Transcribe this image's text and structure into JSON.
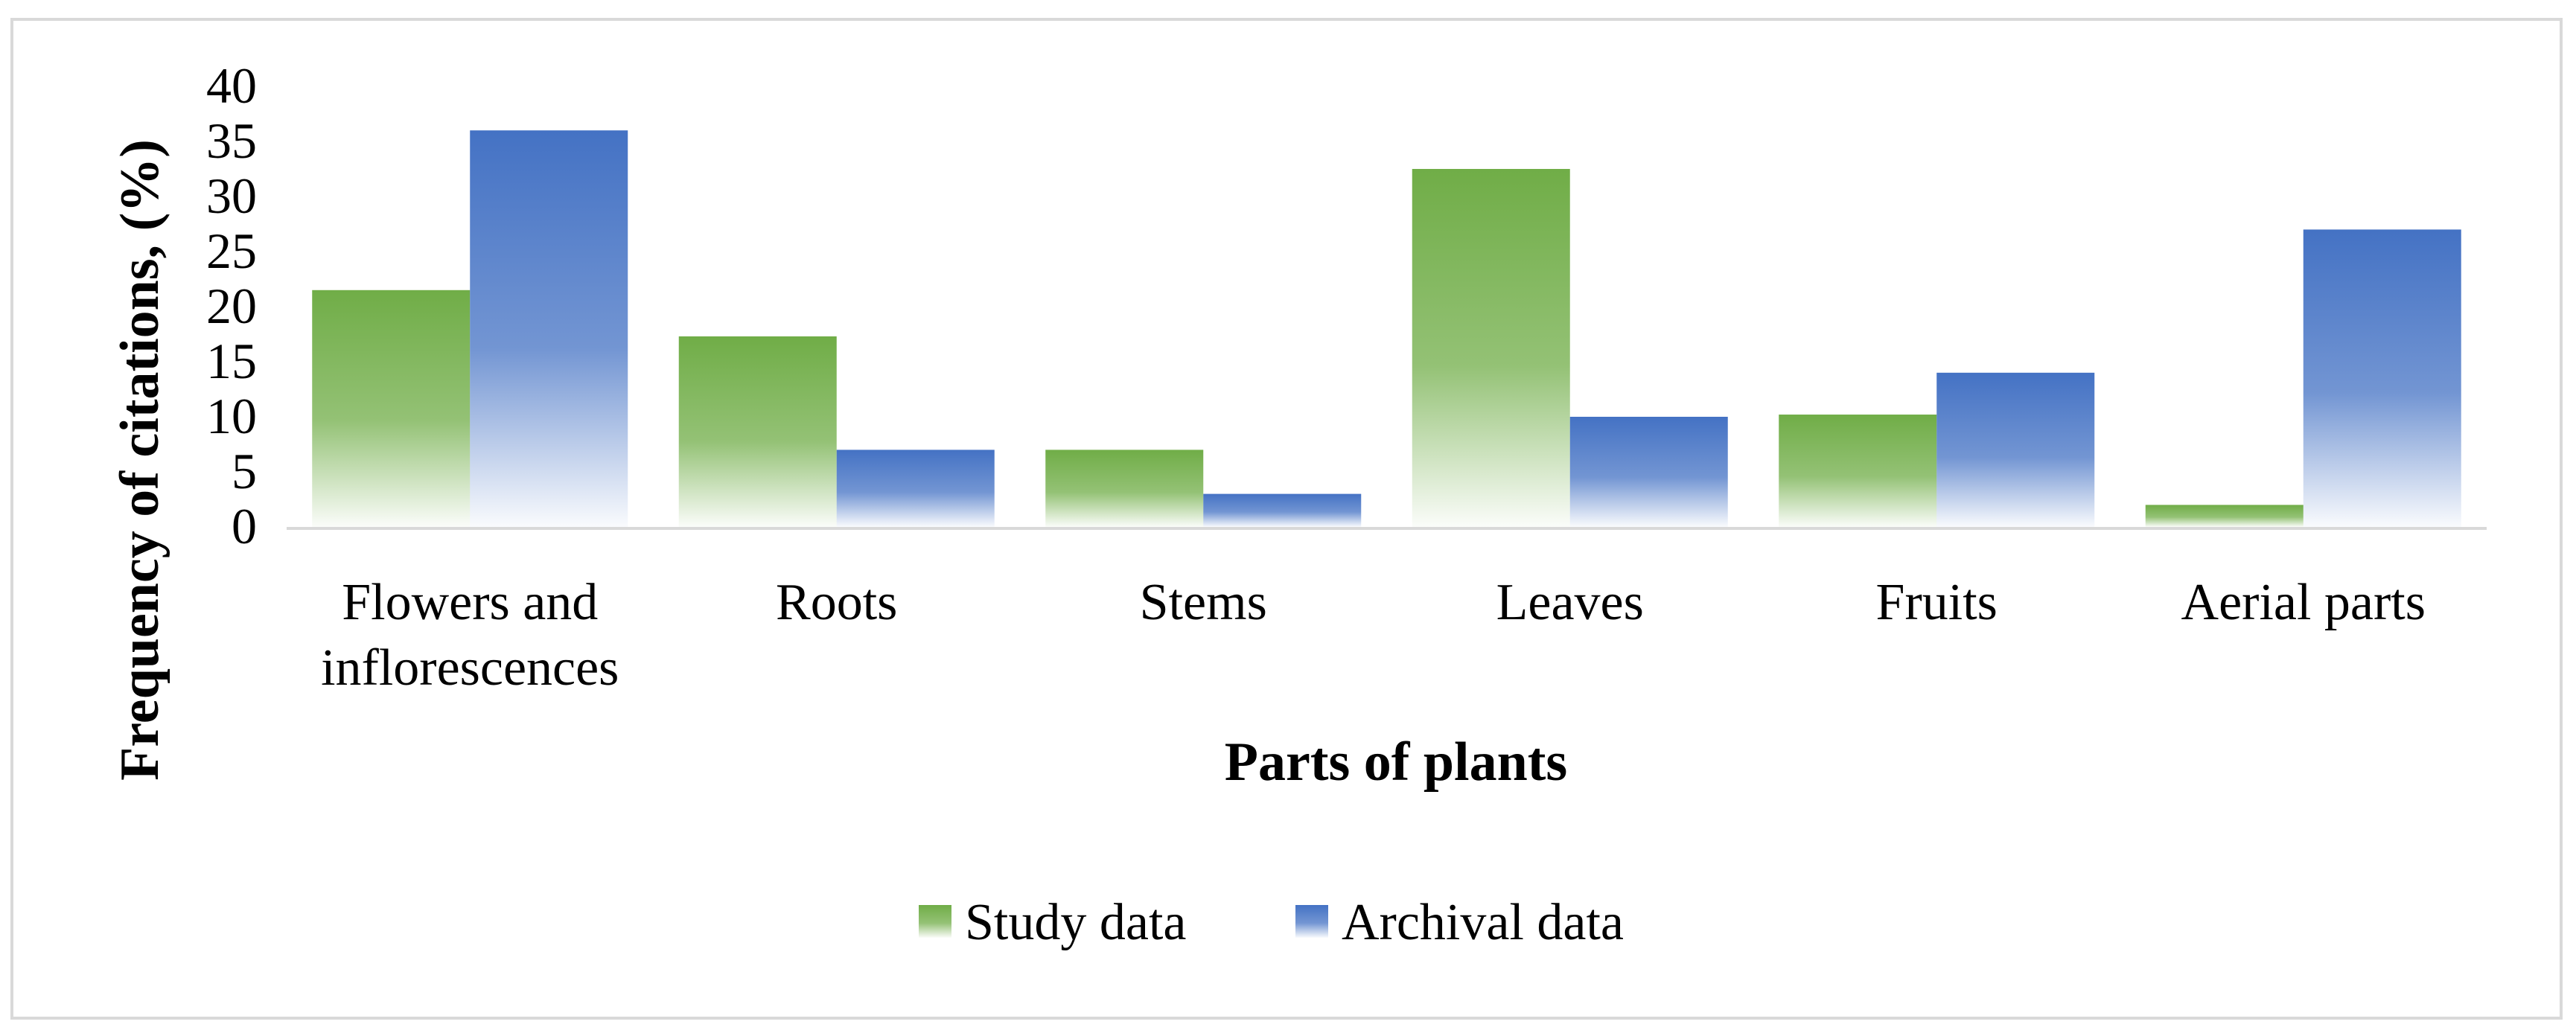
{
  "chart_data": {
    "type": "bar",
    "categories": [
      [
        "Flowers and",
        "inflorescences"
      ],
      [
        "Roots"
      ],
      [
        "Stems"
      ],
      [
        "Leaves"
      ],
      [
        "Fruits"
      ],
      [
        "Aerial parts"
      ]
    ],
    "series": [
      {
        "name": "Study data",
        "values": [
          21.5,
          17.3,
          7.0,
          32.5,
          10.2,
          2.0
        ],
        "color": "#70ad47"
      },
      {
        "name": "Archival data",
        "values": [
          36.0,
          7.0,
          3.0,
          10.0,
          14.0,
          27.0
        ],
        "color": "#4472c4"
      }
    ],
    "title": "",
    "xlabel": "Parts of plants",
    "ylabel": "Frequency of citations, (%)",
    "ylim": [
      0,
      40
    ],
    "yticks": [
      0,
      5,
      10,
      15,
      20,
      25,
      30,
      35,
      40
    ],
    "grid": false,
    "legend_position": "bottom"
  }
}
